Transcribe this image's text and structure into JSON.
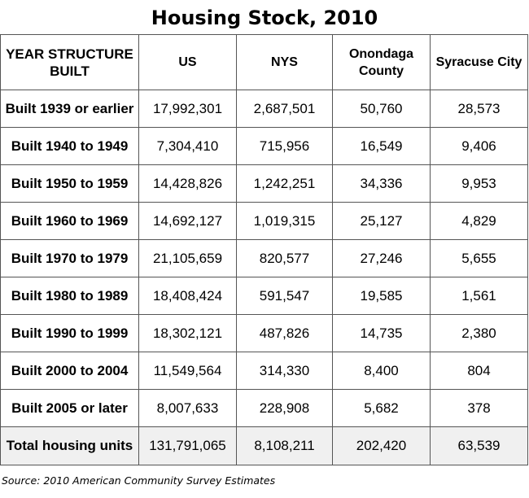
{
  "chart_data": {
    "type": "table",
    "title": "Housing Stock, 2010",
    "columns": [
      "YEAR STRUCTURE BUILT",
      "US",
      "NYS",
      "Onondaga County",
      "Syracuse City"
    ],
    "rows": [
      [
        "Built 1939 or earlier",
        "17,992,301",
        "2,687,501",
        "50,760",
        "28,573"
      ],
      [
        "Built 1940 to 1949",
        "7,304,410",
        "715,956",
        "16,549",
        "9,406"
      ],
      [
        "Built 1950 to 1959",
        "14,428,826",
        "1,242,251",
        "34,336",
        "9,953"
      ],
      [
        "Built 1960 to 1969",
        "14,692,127",
        "1,019,315",
        "25,127",
        "4,829"
      ],
      [
        "Built 1970 to 1979",
        "21,105,659",
        "820,577",
        "27,246",
        "5,655"
      ],
      [
        "Built 1980 to 1989",
        "18,408,424",
        "591,547",
        "19,585",
        "1,561"
      ],
      [
        "Built 1990 to 1999",
        "18,302,121",
        "487,826",
        "14,735",
        "2,380"
      ],
      [
        "Built 2000 to 2004",
        "11,549,564",
        "314,330",
        "8,400",
        "804"
      ],
      [
        "Built 2005 or later",
        "8,007,633",
        "228,908",
        "5,682",
        "378"
      ],
      [
        "Total housing units",
        "131,791,065",
        "8,108,211",
        "202,420",
        "63,539"
      ]
    ],
    "source": "Source: 2010 American Community Survey Estimates"
  }
}
